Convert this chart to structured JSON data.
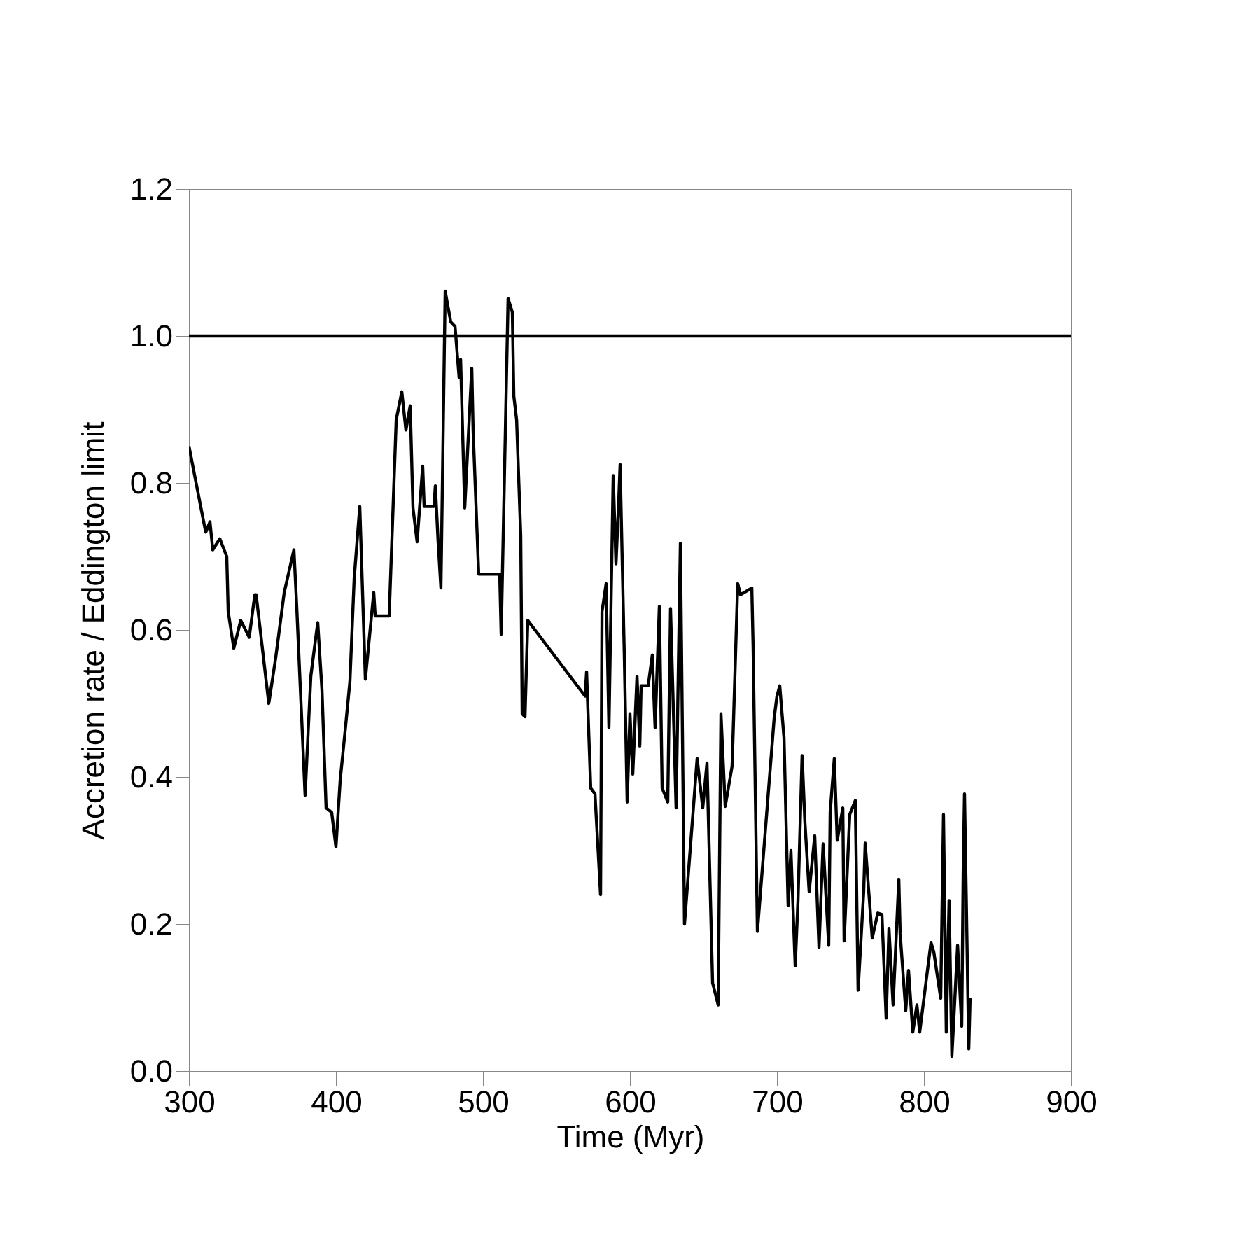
{
  "chart_data": {
    "type": "line",
    "xlabel": "Time (Myr)",
    "ylabel": "Accretion rate / Eddington limit",
    "xlim": [
      300,
      900
    ],
    "xticks": [
      300,
      400,
      500,
      600,
      700,
      800,
      900
    ],
    "ylim": [
      0,
      1.2
    ],
    "yticks": [
      {
        "value": 0,
        "label": "0.0"
      },
      0.2,
      0.4,
      0.6,
      0.8,
      {
        "value": 1,
        "label": "1.0"
      },
      1.2
    ],
    "grid": false,
    "ref_lines": [
      {
        "axis": "y",
        "value": 1.0,
        "color": "#000000",
        "line_style": "solid"
      }
    ],
    "series": [
      {
        "color": "#000000",
        "line_style": "solid",
        "x": [
          300,
          311.4,
          314.3,
          316.2,
          321,
          325.7,
          326.7,
          330.5,
          335.2,
          341,
          344.8,
          345.7,
          354.3,
          359,
          364.8,
          371.4,
          373.3,
          379,
          382.9,
          385.7,
          387.6,
          390.5,
          393.3,
          397.1,
          400,
          402.9,
          406.7,
          409.5,
          412.4,
          416.2,
          420,
          425.7,
          426.7,
          436.2,
          441,
          444.8,
          447.6,
          450.5,
          452.4,
          455.2,
          459,
          460,
          466.7,
          467.6,
          469.5,
          471.4,
          474.3,
          478.1,
          481,
          483.8,
          484.8,
          487.6,
          492.4,
          493.3,
          497.1,
          511.4,
          512.4,
          517.1,
          520,
          521,
          522.9,
          525.7,
          526.7,
          528.6,
          530.5,
          569.5,
          570.5,
          573.3,
          576.2,
          580,
          581,
          583.8,
          585.7,
          588.6,
          590.5,
          592.4,
          593.3,
          596.2,
          598.1,
          600,
          601.9,
          604.8,
          606.7,
          607.6,
          612.4,
          615.2,
          617.1,
          620,
          621.9,
          625.7,
          627.6,
          631.4,
          634.3,
          637.1,
          645.7,
          649.5,
          652.4,
          656.2,
          660,
          661.9,
          664.8,
          669.5,
          673.3,
          675.2,
          682.9,
          683.8,
          686.7,
          698.1,
          700,
          701.9,
          704.8,
          707.6,
          709.5,
          712.4,
          714.3,
          717.1,
          719,
          721.9,
          725.7,
          728.6,
          731.4,
          735.2,
          736.2,
          739,
          741,
          744.8,
          745.7,
          749.5,
          753.3,
          755.2,
          759,
          760,
          764.8,
          768.6,
          771.4,
          774.3,
          776.2,
          779,
          782.9,
          783.8,
          787.6,
          789.5,
          792.4,
          795.2,
          797.1,
          800,
          804.8,
          806.7,
          811.4,
          813.3,
          815.2,
          817.1,
          819,
          822.9,
          825.7,
          826.7,
          827.6,
          830.5,
          831.4
        ],
        "values": [
          0.85,
          0.733,
          0.747,
          0.709,
          0.724,
          0.7,
          0.625,
          0.575,
          0.613,
          0.59,
          0.648,
          0.648,
          0.5,
          0.562,
          0.651,
          0.709,
          0.632,
          0.375,
          0.537,
          0.581,
          0.61,
          0.518,
          0.358,
          0.352,
          0.305,
          0.396,
          0.472,
          0.53,
          0.67,
          0.768,
          0.533,
          0.651,
          0.619,
          0.619,
          0.886,
          0.924,
          0.872,
          0.905,
          0.766,
          0.72,
          0.823,
          0.768,
          0.768,
          0.796,
          0.72,
          0.657,
          1.061,
          1.019,
          1.013,
          0.943,
          0.968,
          0.766,
          0.956,
          0.872,
          0.676,
          0.676,
          0.594,
          1.051,
          1.032,
          0.918,
          0.886,
          0.728,
          0.486,
          0.482,
          0.613,
          0.51,
          0.543,
          0.385,
          0.377,
          0.24,
          0.625,
          0.663,
          0.467,
          0.81,
          0.69,
          0.777,
          0.825,
          0.562,
          0.366,
          0.486,
          0.404,
          0.537,
          0.442,
          0.524,
          0.524,
          0.566,
          0.467,
          0.632,
          0.385,
          0.366,
          0.629,
          0.358,
          0.718,
          0.2,
          0.425,
          0.358,
          0.419,
          0.12,
          0.09,
          0.486,
          0.36,
          0.415,
          0.663,
          0.648,
          0.657,
          0.575,
          0.19,
          0.48,
          0.51,
          0.524,
          0.453,
          0.225,
          0.3,
          0.143,
          0.232,
          0.429,
          0.339,
          0.244,
          0.32,
          0.168,
          0.309,
          0.171,
          0.352,
          0.425,
          0.314,
          0.358,
          0.177,
          0.349,
          0.368,
          0.11,
          0.244,
          0.31,
          0.181,
          0.215,
          0.213,
          0.072,
          0.194,
          0.09,
          0.261,
          0.187,
          0.082,
          0.137,
          0.053,
          0.09,
          0.053,
          0.099,
          0.175,
          0.162,
          0.099,
          0.349,
          0.053,
          0.232,
          0.02,
          0.171,
          0.061,
          0.27,
          0.377,
          0.03,
          0.099
        ]
      }
    ]
  }
}
